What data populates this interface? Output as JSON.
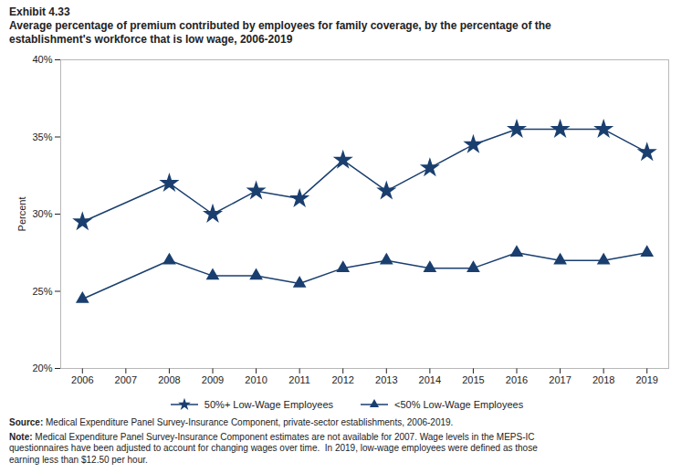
{
  "chart_data": {
    "type": "line",
    "title": "Exhibit 4.33",
    "subtitle": "Average percentage of premium contributed by employees for family coverage, by the percentage of the\nestablishment's workforce that is low wage, 2006-2019",
    "x": [
      2006,
      2008,
      2009,
      2010,
      2011,
      2012,
      2013,
      2014,
      2015,
      2016,
      2017,
      2018,
      2019
    ],
    "series": [
      {
        "name": "50%+ Low-Wage Employees",
        "color": "#1a3f6f",
        "marker": "star",
        "values": [
          29.5,
          32.0,
          30.0,
          31.5,
          31.0,
          33.5,
          31.5,
          33.0,
          34.5,
          35.5,
          35.5,
          35.5,
          34.0
        ]
      },
      {
        "name": "<50% Low-Wage Employees",
        "color": "#1a3f6f",
        "marker": "triangle",
        "values": [
          24.5,
          27.0,
          26.0,
          26.0,
          25.5,
          26.5,
          27.0,
          26.5,
          26.5,
          27.5,
          27.0,
          27.0,
          27.5
        ]
      }
    ],
    "ylabel": "Percent",
    "xlim": [
      2005.5,
      2019.5
    ],
    "xticks": [
      2006,
      2007,
      2008,
      2009,
      2010,
      2011,
      2012,
      2013,
      2014,
      2015,
      2016,
      2017,
      2018,
      2019
    ],
    "ylim": [
      20,
      40
    ],
    "yticks": [
      {
        "value": 20,
        "label": "20%"
      },
      {
        "value": 25,
        "label": "25%"
      },
      {
        "value": 30,
        "label": "30%"
      },
      {
        "value": 35,
        "label": "35%"
      },
      {
        "value": 40,
        "label": "40%"
      }
    ],
    "grid": false,
    "legend": "bottom",
    "annotations": [
      "Source: Medical Expenditure Panel Survey-Insurance Component, private-sector establishments, 2006-2019.",
      "Note: Medical Expenditure Panel Survey-Insurance Component estimates are not available for 2007. Wage levels in the MEPS-IC\nquestionnaires have been adjusted to account for changing wages over time.  In 2019, low-wage employees were defined as those\nearning less than $12.50 per hour."
    ]
  }
}
